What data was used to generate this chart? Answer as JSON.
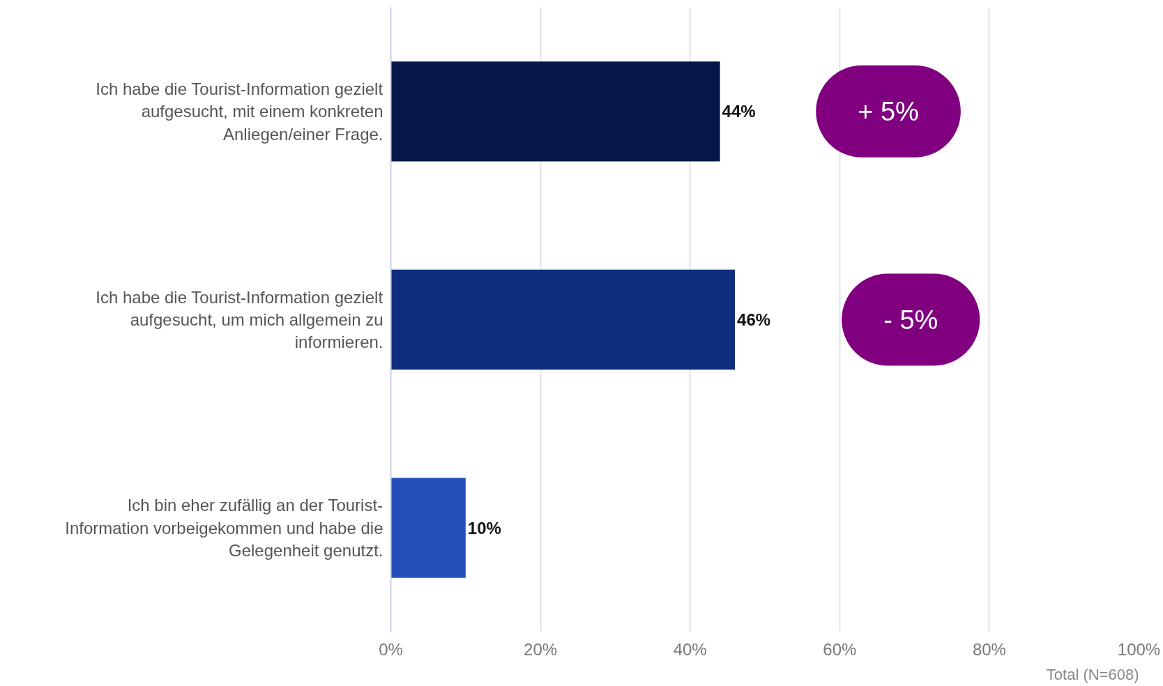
{
  "chart_data": {
    "type": "bar",
    "orientation": "horizontal",
    "categories": [
      "Ich habe die Tourist-Information gezielt aufgesucht, mit einem konkreten Anliegen/einer Frage.",
      "Ich habe die Tourist-Information gezielt aufgesucht, um mich allgemein zu informieren.",
      "Ich bin eher zufällig an der Tourist-Information vorbeigekommen und habe die Gelegenheit genutzt."
    ],
    "values": [
      44,
      46,
      10
    ],
    "colors": [
      "#06174a",
      "#0f2e7e",
      "#244fba"
    ],
    "value_labels": [
      "44%",
      "46%",
      "10%"
    ],
    "xlim": [
      0,
      100
    ],
    "xticks": [
      {
        "value": 0,
        "label": "0%"
      },
      {
        "value": 20,
        "label": "20%"
      },
      {
        "value": 40,
        "label": "40%"
      },
      {
        "value": 60,
        "label": "60%"
      },
      {
        "value": 80,
        "label": "80%"
      },
      {
        "value": 100,
        "label": "100%"
      }
    ],
    "grid": "x",
    "annotations": [
      "+ 5%",
      "- 5%",
      "Total (N=608)"
    ]
  }
}
